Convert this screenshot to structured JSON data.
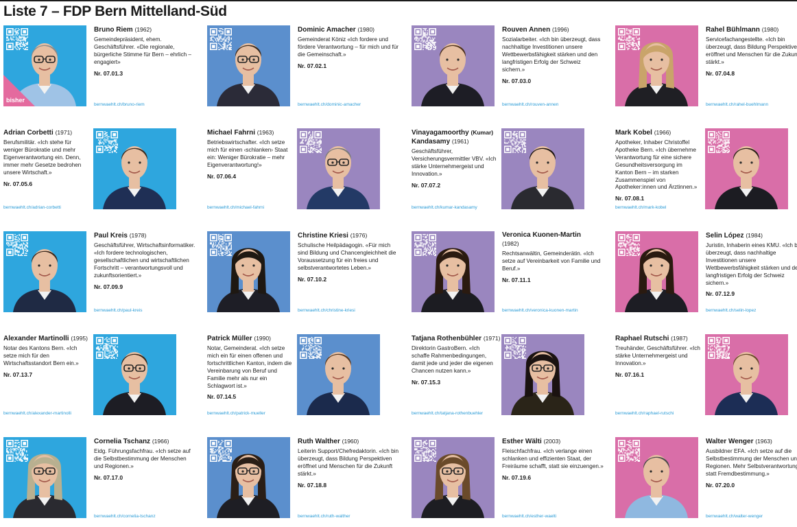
{
  "title": "Liste 7 – FDP Bern Mittelland-Süd",
  "incumbent_label": "bisher",
  "colors": {
    "blue": "#2ea6de",
    "steel": "#5b8fcd",
    "purple": "#9a86bf",
    "pink": "#d96ea8",
    "link": "#2a9bd6"
  },
  "candidates": [
    {
      "name": "Bruno Riem",
      "year": "(1962)",
      "bio": "Gemeindepräsident, ehem. Geschäftsführer. «Die regionale, bürgerliche Stimme für Bern – ehrlich – engagiert»",
      "number": "Nr. 07.01.3",
      "url": "bernwaehlt.ch/bruno-riem"
    },
    {
      "name": "Dominic Amacher",
      "year": "(1980)",
      "bio": "Gemeinderat Köniz «Ich fordere und fördere Verantwortung – für mich und für die Gemeinschaft.»",
      "number": "Nr. 07.02.1",
      "url": "bernwaehlt.ch/dominic-amacher"
    },
    {
      "name": "Rouven Annen",
      "year": "(1996)",
      "bio": "Sozialarbeiter. «Ich bin überzeugt, dass nachhaltige Investitionen unsere Wettbewerbsfähigkeit stärken und den langfristigen Erfolg der Schweiz sichern.»",
      "number": "Nr. 07.03.0",
      "url": "bernwaehlt.ch/rouven-annen"
    },
    {
      "name": "Rahel Bühlmann",
      "year": "(1980)",
      "bio": "Servicefachangestellte. «Ich bin überzeugt, dass Bildung Perspektiven eröffnet und Menschen für die Zukunft stärkt.»",
      "number": "Nr. 07.04.8",
      "url": "bernwaehlt.ch/rahel-buehlmann"
    },
    {
      "name": "Adrian Corbetti",
      "year": "(1971)",
      "bio": "Berufsmilitär. «Ich stehe für weniger Bürokratie und mehr Eigenverantwortung ein. Denn, immer mehr Gesetze bedrohen unsere Wirtschaft.»",
      "number": "Nr. 07.05.6",
      "url": "bernwaehlt.ch/adrian-corbetti"
    },
    {
      "name": "Michael Fahrni",
      "year": "(1963)",
      "bio": "Betriebswirtschafter. «Ich setze mich für einen ‹schlanken› Staat ein: Weniger Bürokratie – mehr Eigenverantwortung!»",
      "number": "Nr. 07.06.4",
      "url": "bernwaehlt.ch/michael-fahrni"
    },
    {
      "name": "Vinayagamoorthy",
      "nick": "(Kumar)",
      "name2": "Kandasamy",
      "year": "(1961)",
      "bio": "Geschäftsführer, Versicherungsvermittler VBV. «Ich stärke Unternehmergeist und Innovation.»",
      "number": "Nr. 07.07.2",
      "url": "bernwaehlt.ch/kumar-kandasamy"
    },
    {
      "name": "Mark Kobel",
      "year": "(1966)",
      "bio": "Apotheker, Inhaber Christoffel Apotheke Bern. «Ich übernehme Verantwortung für eine sichere Gesundheitsversorgung im Kanton Bern – im starken Zusammenspiel von Apotheker:innen und Ärztinnen.»",
      "number": "Nr. 07.08.1",
      "url": "bernwaehlt.ch/mark-kobel"
    },
    {
      "name": "Paul Kreis",
      "year": "(1978)",
      "bio": "Geschäftsführer, Wirtschaftsinformatiker. «Ich fordere technologischen, gesellschaftlichen und wirtschaftlichen Fortschritt – verantwortungsvoll und zukunftsorientiert.»",
      "number": "Nr. 07.09.9",
      "url": "bernwaehlt.ch/paul-kreis"
    },
    {
      "name": "Christine Kriesi",
      "year": "(1976)",
      "bio": "Schulische Heilpädagogin. «Für mich sind Bildung und Chancengleichheit die Voraussetzung für ein freies und selbstverantwortetes Leben.»",
      "number": "Nr. 07.10.2",
      "url": "bernwaehlt.ch/christine-kriesi"
    },
    {
      "name": "Veronica Kuonen-Martin",
      "year": "",
      "name2line": "(1982)",
      "bio": "Rechtsanwältin, Gemeinderätin. «Ich setze auf Vereinbarkeit von Familie und Beruf.»",
      "number": "Nr. 07.11.1",
      "url": "bernwaehlt.ch/veronica-kuonen-martin"
    },
    {
      "name": "Selin López",
      "year": "(1984)",
      "bio": "Juristin, Inhaberin eines KMU. «Ich bin überzeugt, dass nachhaltige Investitionen unsere Wettbewerbsfähigkeit stärken und den langfristigen Erfolg der Schweiz sichern.»",
      "number": "Nr. 07.12.9",
      "url": "bernwaehlt.ch/selin-lopez"
    },
    {
      "name": "Alexander Martinolli",
      "year": "(1995)",
      "bio": "Notar des Kantons Bern. «Ich setze mich für den Wirtschaftsstandort Bern ein.»",
      "number": "Nr. 07.13.7",
      "url": "bernwaehlt.ch/alexander-martinolli"
    },
    {
      "name": "Patrick Müller",
      "year": "(1990)",
      "bio": "Notar, Gemeinderat. «Ich setze mich ein für einen offenen und fortschrittlichen Kanton, indem die Vereinbarung von Beruf und Familie mehr als nur ein Schlagwort ist.»",
      "number": "Nr. 07.14.5",
      "url": "bernwaehlt.ch/patrick-mueller"
    },
    {
      "name": "Tatjana Rothenbühler",
      "year": "(1971)",
      "bio": "Direktorin GastroBern. «Ich schaffe Rahmenbedingungen, damit jede und jeder die eigenen Chancen nutzen kann.»",
      "number": "Nr. 07.15.3",
      "url": "bernwaehlt.ch/tatjana-rothenbuehler"
    },
    {
      "name": "Raphael Rutschi",
      "year": "(1987)",
      "bio": "Treuhänder, Geschäftsführer. «Ich stärke Unternehmergeist und Innovation.»",
      "number": "Nr. 07.16.1",
      "url": "bernwaehlt.ch/raphael-rutschi"
    },
    {
      "name": "Cornelia Tschanz",
      "year": "(1966)",
      "bio": "Eidg. Führungsfachfrau. «Ich setze auf die Selbstbestimmung der Menschen und Regionen.»",
      "number": "Nr. 07.17.0",
      "url": "bernwaehlt.ch/cornelia-tschanz"
    },
    {
      "name": "Ruth Walther",
      "year": "(1960)",
      "bio": "Leiterin Support/Chefredaktorin. «Ich bin überzeugt, dass Bildung Perspektiven eröffnet und Menschen für die Zukunft stärkt.»",
      "number": "Nr. 07.18.8",
      "url": "bernwaehlt.ch/ruth-walther"
    },
    {
      "name": "Esther Wälti",
      "year": "(2003)",
      "bio": "Fleischfachfrau. «Ich verlange einen schlanken und effizienten Staat, der Freiräume schafft, statt sie einzuengen.»",
      "number": "Nr. 07.19.6",
      "url": "bernwaehlt.ch/esther-waelti"
    },
    {
      "name": "Walter Wenger",
      "year": "(1963)",
      "bio": "Ausbildner EFA. «Ich setze auf die Selbstbestimmung der Menschen und Regionen. Mehr Selbstverantwortung statt Fremdbestimmung.»",
      "number": "Nr. 07.20.0",
      "url": "bernwaehlt.ch/walter-wenger"
    }
  ]
}
